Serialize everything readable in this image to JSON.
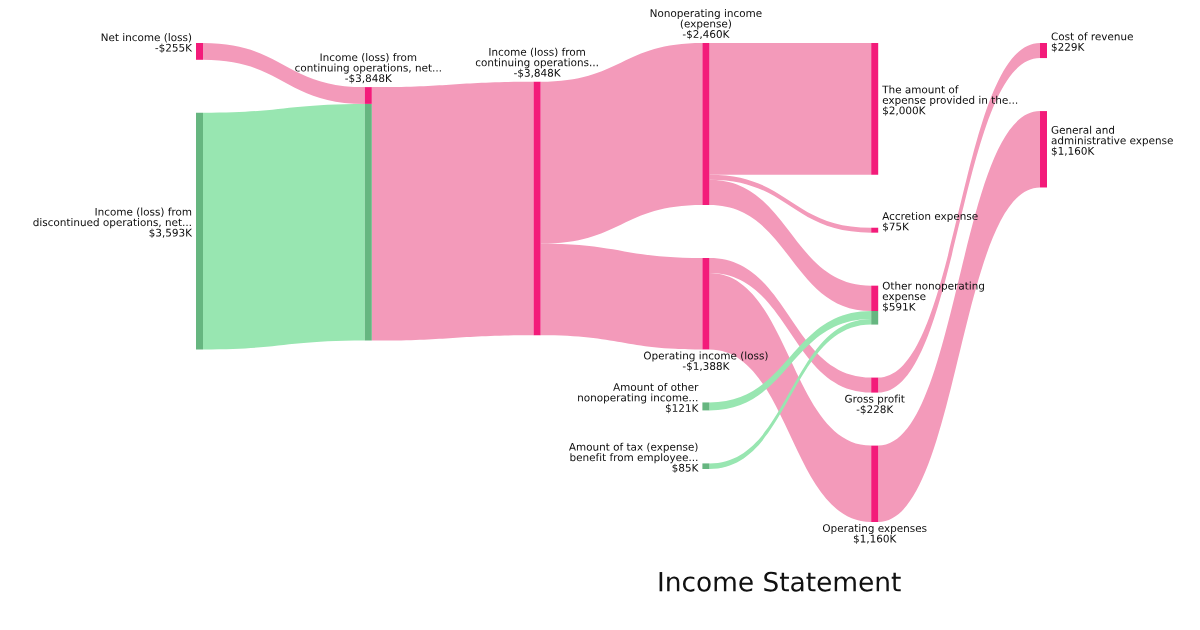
{
  "chart_data": {
    "type": "other",
    "title": "Income Statement",
    "categories": [
      "Net income (loss)",
      "Income (loss) from\ndiscontinued operations, net...",
      "Income (loss) from\ncontinuing operations, net...",
      "Income (loss) from\ncontinuing operations...",
      "Nonoperating income\n(expense)",
      "Operating income (loss)",
      "Amount of other\nnonoperating income...",
      "Amount of tax (expense)\nbenefit from employee...",
      "The amount of\nexpense provided in the...",
      "Accretion expense",
      "Other nonoperating\nexpense",
      "Gross profit",
      "Operating expenses",
      "Cost of revenue",
      "General and\nadministrative expense"
    ],
    "values": [
      -255,
      3593,
      -3848,
      -3848,
      -2460,
      -1388,
      121,
      85,
      2000,
      75,
      591,
      -228,
      1160,
      229,
      1160
    ],
    "value_labels": [
      "-$255K",
      "$3,593K",
      "-$3,848K",
      "-$3,848K",
      "-$2,460K",
      "-$1,388K",
      "$121K",
      "$85K",
      "$2,000K",
      "$75K",
      "$591K",
      "-$228K",
      "$1,160K",
      "$229K",
      "$1,160K"
    ],
    "colors": [
      "#f31b7a",
      "#66b680",
      [
        "#f31b7a",
        "#66b680"
      ],
      "#f31b7a",
      "#f31b7a",
      "#f31b7a",
      "#66b680",
      "#66b680",
      "#f31b7a",
      "#f31b7a",
      [
        "#f31b7a",
        "#66b680",
        "#66b680"
      ],
      "#f31b7a",
      "#f31b7a",
      "#f31b7a",
      "#f31b7a"
    ],
    "series": [
      {
        "color": "#f39aba",
        "values": [
          null,
          null,
          true,
          null,
          null,
          null,
          null,
          null,
          null,
          null,
          null,
          null,
          null,
          null,
          null
        ]
      },
      {
        "color": "#98e6b1",
        "values": [
          null,
          null,
          true,
          null,
          null,
          null,
          null,
          null,
          null,
          null,
          null,
          null,
          null,
          null,
          null
        ]
      },
      {
        "color": "#f39aba",
        "values": [
          null,
          null,
          null,
          true,
          null,
          null,
          null,
          null,
          null,
          null,
          null,
          null,
          null,
          null,
          null
        ]
      },
      {
        "color": "#f39aba",
        "values": [
          null,
          null,
          null,
          null,
          true,
          true,
          null,
          null,
          null,
          null,
          null,
          null,
          null,
          null,
          null
        ]
      },
      {
        "color": "#f39aba",
        "values": [
          null,
          null,
          null,
          null,
          null,
          null,
          null,
          null,
          true,
          true,
          true,
          null,
          null,
          null,
          null
        ]
      },
      {
        "color": "#f39aba",
        "values": [
          null,
          null,
          null,
          null,
          null,
          null,
          null,
          null,
          null,
          null,
          null,
          true,
          true,
          null,
          null
        ]
      },
      {
        "color": "#98e6b1",
        "values": [
          null,
          null,
          null,
          null,
          null,
          null,
          null,
          null,
          null,
          null,
          true,
          null,
          null,
          null,
          null
        ]
      },
      {
        "color": "#98e6b1",
        "values": [
          null,
          null,
          null,
          null,
          null,
          null,
          null,
          null,
          null,
          null,
          true,
          null,
          null,
          null,
          null
        ]
      },
      {
        "values": [
          null,
          null,
          null,
          null,
          null,
          null,
          null,
          null,
          null,
          null,
          null,
          null,
          null,
          null,
          null
        ]
      },
      {
        "values": [
          null,
          null,
          null,
          null,
          null,
          null,
          null,
          null,
          null,
          null,
          null,
          null,
          null,
          null,
          null
        ]
      },
      {
        "values": [
          null,
          null,
          null,
          null,
          null,
          null,
          null,
          null,
          null,
          null,
          null,
          null,
          null,
          null,
          null
        ]
      },
      {
        "color": "#f39aba",
        "values": [
          null,
          null,
          null,
          null,
          null,
          null,
          null,
          null,
          null,
          null,
          null,
          null,
          null,
          true,
          null
        ]
      },
      {
        "color": "#f39aba",
        "values": [
          null,
          null,
          null,
          null,
          null,
          null,
          null,
          null,
          null,
          null,
          null,
          null,
          null,
          null,
          true
        ]
      },
      {
        "values": [
          null,
          null,
          null,
          null,
          null,
          null,
          null,
          null,
          null,
          null,
          null,
          null,
          null,
          null,
          null
        ]
      },
      {
        "values": [
          null,
          null,
          null,
          null,
          null,
          null,
          null,
          null,
          null,
          null,
          null,
          null,
          null,
          null,
          null
        ]
      }
    ]
  }
}
